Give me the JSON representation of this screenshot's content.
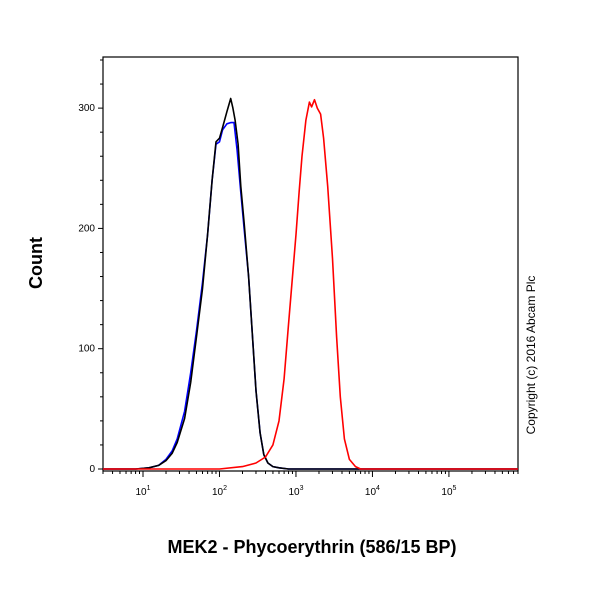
{
  "chart_data": {
    "type": "line",
    "title": "",
    "xlabel": "MEK2 - Phycoerythrin (586/15 BP)",
    "ylabel": "Count",
    "x_scale": "log",
    "xlim": [
      3,
      800000
    ],
    "ylim": [
      0,
      340
    ],
    "x_ticks": [
      {
        "base": "10",
        "exp": "1",
        "value": 10
      },
      {
        "base": "10",
        "exp": "2",
        "value": 100
      },
      {
        "base": "10",
        "exp": "3",
        "value": 1000
      },
      {
        "base": "10",
        "exp": "4",
        "value": 10000
      },
      {
        "base": "10",
        "exp": "5",
        "value": 100000
      }
    ],
    "y_ticks": [
      {
        "label": "0",
        "value": 0
      },
      {
        "label": "100",
        "value": 100
      },
      {
        "label": "200",
        "value": 200
      },
      {
        "label": "300",
        "value": 300
      }
    ],
    "grid": false,
    "legend": "none",
    "series": [
      {
        "color": "#0000ff",
        "points": [
          [
            3,
            0
          ],
          [
            8,
            0
          ],
          [
            12,
            1
          ],
          [
            16,
            3
          ],
          [
            20,
            8
          ],
          [
            24,
            15
          ],
          [
            28,
            25
          ],
          [
            35,
            48
          ],
          [
            42,
            80
          ],
          [
            50,
            115
          ],
          [
            60,
            155
          ],
          [
            70,
            195
          ],
          [
            80,
            240
          ],
          [
            90,
            270
          ],
          [
            100,
            272
          ],
          [
            110,
            282
          ],
          [
            125,
            287
          ],
          [
            140,
            288
          ],
          [
            155,
            288
          ],
          [
            170,
            265
          ],
          [
            190,
            230
          ],
          [
            210,
            200
          ],
          [
            240,
            160
          ],
          [
            270,
            110
          ],
          [
            300,
            65
          ],
          [
            340,
            30
          ],
          [
            380,
            12
          ],
          [
            430,
            5
          ],
          [
            500,
            2
          ],
          [
            600,
            1
          ],
          [
            800,
            0
          ],
          [
            800000,
            0
          ]
        ]
      },
      {
        "color": "#000000",
        "points": [
          [
            3,
            0
          ],
          [
            8,
            0
          ],
          [
            12,
            1
          ],
          [
            16,
            3
          ],
          [
            20,
            7
          ],
          [
            24,
            13
          ],
          [
            28,
            22
          ],
          [
            35,
            42
          ],
          [
            42,
            72
          ],
          [
            50,
            110
          ],
          [
            60,
            150
          ],
          [
            70,
            195
          ],
          [
            80,
            240
          ],
          [
            90,
            272
          ],
          [
            100,
            275
          ],
          [
            110,
            284
          ],
          [
            125,
            297
          ],
          [
            140,
            308
          ],
          [
            150,
            300
          ],
          [
            160,
            290
          ],
          [
            175,
            270
          ],
          [
            190,
            235
          ],
          [
            210,
            205
          ],
          [
            240,
            160
          ],
          [
            270,
            110
          ],
          [
            300,
            65
          ],
          [
            340,
            30
          ],
          [
            380,
            12
          ],
          [
            430,
            5
          ],
          [
            500,
            2
          ],
          [
            600,
            1
          ],
          [
            800,
            0
          ],
          [
            800000,
            0
          ]
        ]
      },
      {
        "color": "#ff0000",
        "points": [
          [
            3,
            0
          ],
          [
            100,
            0
          ],
          [
            200,
            2
          ],
          [
            300,
            5
          ],
          [
            400,
            10
          ],
          [
            500,
            20
          ],
          [
            600,
            40
          ],
          [
            700,
            75
          ],
          [
            800,
            120
          ],
          [
            900,
            160
          ],
          [
            1000,
            195
          ],
          [
            1100,
            230
          ],
          [
            1200,
            260
          ],
          [
            1350,
            290
          ],
          [
            1500,
            305
          ],
          [
            1600,
            301
          ],
          [
            1750,
            307
          ],
          [
            1900,
            300
          ],
          [
            2100,
            295
          ],
          [
            2300,
            275
          ],
          [
            2600,
            235
          ],
          [
            3000,
            175
          ],
          [
            3400,
            110
          ],
          [
            3800,
            60
          ],
          [
            4300,
            25
          ],
          [
            5000,
            8
          ],
          [
            6000,
            2
          ],
          [
            7000,
            0
          ],
          [
            800000,
            0
          ]
        ]
      }
    ],
    "annotations": [
      {
        "text": "Copyright (c) 2016 Abcam Plc",
        "orientation": "vertical"
      }
    ]
  }
}
